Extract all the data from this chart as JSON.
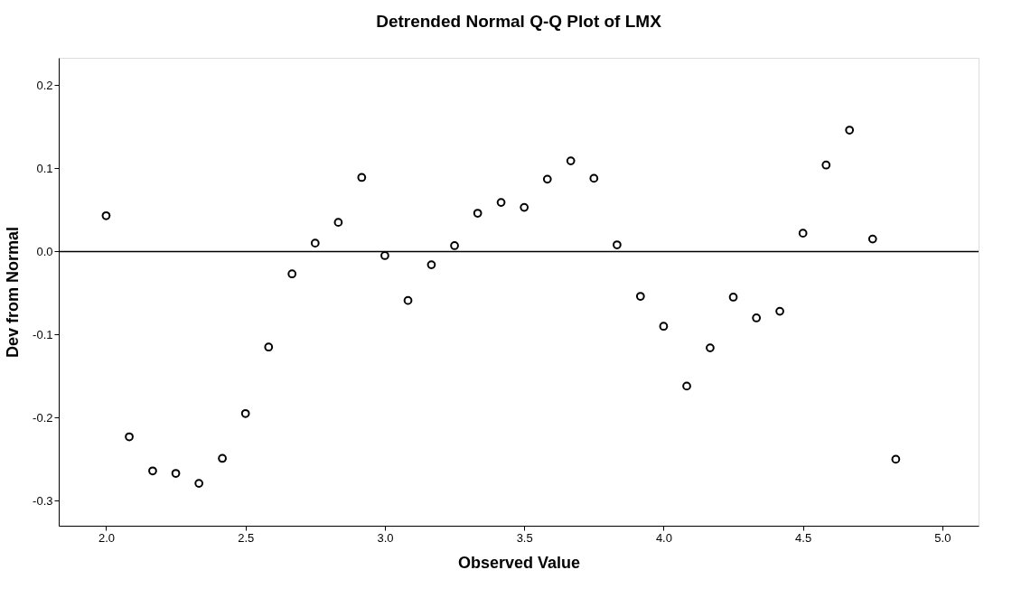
{
  "chart_data": {
    "type": "scatter",
    "title": "Detrended Normal Q-Q Plot of LMX",
    "xlabel": "Observed Value",
    "ylabel": "Dev from Normal",
    "x": [
      2.0,
      2.083,
      2.167,
      2.25,
      2.333,
      2.417,
      2.5,
      2.583,
      2.667,
      2.75,
      2.833,
      2.917,
      3.0,
      3.083,
      3.167,
      3.25,
      3.333,
      3.417,
      3.5,
      3.583,
      3.667,
      3.75,
      3.833,
      3.917,
      4.0,
      4.083,
      4.167,
      4.25,
      4.333,
      4.417,
      4.5,
      4.583,
      4.667,
      4.75,
      4.833
    ],
    "series": [
      {
        "color": "#000000",
        "values": [
          0.043,
          -0.223,
          -0.264,
          -0.267,
          -0.279,
          -0.249,
          -0.195,
          -0.115,
          -0.027,
          0.01,
          0.035,
          0.089,
          -0.005,
          -0.059,
          -0.016,
          0.007,
          0.046,
          0.059,
          0.053,
          0.087,
          0.109,
          0.088,
          0.008,
          -0.054,
          -0.09,
          -0.162,
          -0.116,
          -0.055,
          -0.08,
          -0.072,
          0.022,
          0.104,
          0.146,
          0.015,
          -0.25
        ]
      }
    ],
    "xlim": [
      1.83,
      5.13
    ],
    "ylim": [
      -0.33,
      0.233
    ],
    "xticks": [
      {
        "value": 2.0,
        "label": "2.0"
      },
      {
        "value": 2.5,
        "label": "2.5"
      },
      {
        "value": 3.0,
        "label": "3.0"
      },
      {
        "value": 3.5,
        "label": "3.5"
      },
      {
        "value": 4.0,
        "label": "4.0"
      },
      {
        "value": 4.5,
        "label": "4.5"
      },
      {
        "value": 5.0,
        "label": "5.0"
      }
    ],
    "yticks": [
      -0.3,
      -0.2,
      -0.1,
      {
        "value": 0.0,
        "label": "0.0"
      },
      0.1,
      0.2
    ],
    "ref_lines": [
      {
        "axis": "y",
        "value": 0,
        "label": null,
        "color": "#000000"
      }
    ],
    "marker": "circle",
    "grid": false,
    "legend": false
  }
}
